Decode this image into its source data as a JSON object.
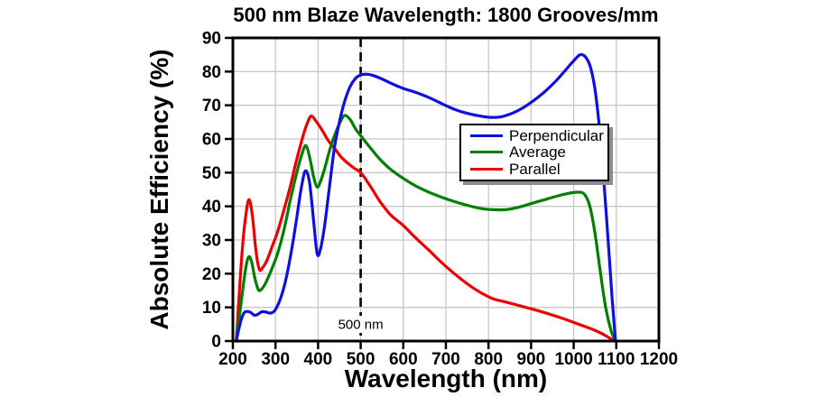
{
  "annotation": {
    "text": "500 nm",
    "x": 500
  },
  "colors": {
    "background": "#ffffff",
    "axis": "#000000",
    "grid": "#c8c8c8",
    "annotation_line": "#000000",
    "legend_shadow": "#8c8c8c"
  },
  "chart_data": {
    "type": "line",
    "title": "500 nm Blaze Wavelength: 1800 Grooves/mm",
    "xlabel": "Wavelength (nm)",
    "ylabel": "Absolute Efficiency (%)",
    "xlim": [
      200,
      1200
    ],
    "ylim": [
      0,
      90
    ],
    "xticks": [
      200,
      300,
      400,
      500,
      600,
      700,
      800,
      900,
      1000,
      1100,
      1200
    ],
    "yticks": [
      0,
      10,
      20,
      30,
      40,
      50,
      60,
      70,
      80,
      90
    ],
    "grid": true,
    "legend_position": "upper center",
    "series": [
      {
        "name": "Perpendicular",
        "color": "#0f0fe0",
        "x": [
          208,
          213,
          220,
          228,
          240,
          250,
          258,
          268,
          278,
          288,
          298,
          310,
          322,
          335,
          348,
          360,
          370,
          380,
          390,
          398,
          406,
          415,
          425,
          438,
          450,
          462,
          475,
          488,
          500,
          515,
          530,
          550,
          575,
          600,
          630,
          660,
          690,
          720,
          750,
          780,
          805,
          830,
          855,
          880,
          905,
          930,
          955,
          980,
          1000,
          1015,
          1028,
          1040,
          1052,
          1065,
          1078,
          1090,
          1098
        ],
        "y": [
          0,
          3,
          6.5,
          8.6,
          8.6,
          7.7,
          7.9,
          8.7,
          8.6,
          8.3,
          9,
          12,
          17,
          25,
          35,
          45,
          50.5,
          47,
          35,
          25.8,
          27.5,
          34,
          44,
          57,
          65,
          71,
          75.5,
          78,
          79,
          79.2,
          78.8,
          77.8,
          76.3,
          75,
          73.8,
          72.3,
          70.5,
          68.8,
          67.6,
          66.8,
          66.4,
          66.6,
          67.6,
          69.2,
          71.3,
          73.8,
          76.8,
          80.3,
          83.2,
          85,
          84.3,
          81,
          73,
          57,
          35,
          13,
          0
        ]
      },
      {
        "name": "Average",
        "color": "#007f00",
        "x": [
          208,
          214,
          222,
          230,
          237,
          244,
          252,
          260,
          268,
          278,
          290,
          305,
          320,
          335,
          350,
          362,
          372,
          382,
          390,
          398,
          406,
          415,
          428,
          440,
          452,
          462,
          475,
          488,
          500,
          520,
          545,
          570,
          600,
          630,
          660,
          690,
          720,
          750,
          780,
          810,
          840,
          870,
          900,
          930,
          960,
          990,
          1010,
          1025,
          1038,
          1050,
          1062,
          1075,
          1088,
          1098
        ],
        "y": [
          0,
          6,
          14,
          21.5,
          25,
          23.5,
          18.5,
          15.2,
          15.5,
          17.5,
          21,
          26,
          33,
          42,
          50,
          55.5,
          58,
          53.5,
          48.5,
          45.7,
          47.5,
          51,
          57,
          61.5,
          65,
          67,
          65.8,
          63,
          61,
          57.8,
          54,
          51,
          48.3,
          46,
          44.2,
          42.7,
          41.4,
          40.3,
          39.4,
          39,
          39,
          39.7,
          40.8,
          41.9,
          43,
          43.9,
          44.2,
          43.6,
          40,
          32,
          21,
          10,
          3,
          0
        ]
      },
      {
        "name": "Parallel",
        "color": "#ee0000",
        "x": [
          208,
          214,
          222,
          230,
          238,
          246,
          254,
          262,
          270,
          280,
          292,
          305,
          320,
          335,
          350,
          365,
          375,
          384,
          395,
          410,
          425,
          440,
          455,
          470,
          485,
          500,
          520,
          545,
          570,
          600,
          630,
          660,
          690,
          720,
          750,
          780,
          810,
          840,
          870,
          900,
          930,
          960,
          990,
          1020,
          1050,
          1075,
          1095
        ],
        "y": [
          0,
          12,
          27,
          37,
          42,
          37,
          27,
          21.3,
          21.8,
          24,
          28,
          32.5,
          39,
          46,
          54,
          61,
          64.8,
          66.8,
          65.3,
          62.5,
          59.3,
          57,
          54.5,
          52.8,
          51.3,
          50,
          46.5,
          41.5,
          37.5,
          34.3,
          30.5,
          27,
          23.3,
          20,
          17,
          14.5,
          12.6,
          11.6,
          10.6,
          9.6,
          8.5,
          7.3,
          6,
          4.6,
          3.2,
          1.6,
          0
        ]
      }
    ]
  }
}
